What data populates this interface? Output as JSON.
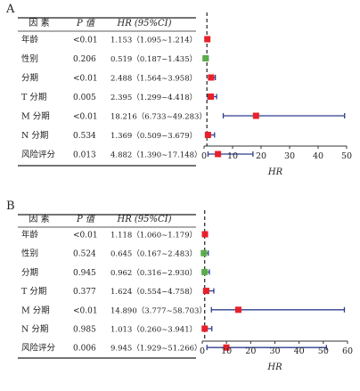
{
  "chart_data": [
    {
      "type": "forest",
      "panel_label": "A",
      "columns": [
        "因 素",
        "P 值",
        "HR (95%CI)"
      ],
      "xlabel": "HR",
      "xlim": [
        0,
        50
      ],
      "xticks": [
        0,
        10,
        20,
        30,
        40,
        50
      ],
      "reference_line": 1,
      "rows": [
        {
          "factor": "年龄",
          "p": "<0.01",
          "hr_text": "1.153（1.095~1.214）",
          "hr": 1.153,
          "lo": 1.095,
          "hi": 1.214,
          "color": "#e8202a"
        },
        {
          "factor": "性别",
          "p": "0.206",
          "hr_text": "0.519（0.187~1.435）",
          "hr": 0.519,
          "lo": 0.187,
          "hi": 1.435,
          "color": "#5aad4a"
        },
        {
          "factor": "分期",
          "p": "<0.01",
          "hr_text": "2.488（1.564~3.958）",
          "hr": 2.488,
          "lo": 1.564,
          "hi": 3.958,
          "color": "#e8202a"
        },
        {
          "factor": "T 分期",
          "p": "0.005",
          "hr_text": "2.395（1.299~4.418）",
          "hr": 2.395,
          "lo": 1.299,
          "hi": 4.418,
          "color": "#e8202a"
        },
        {
          "factor": "M 分期",
          "p": "<0.01",
          "hr_text": "18.216（6.733~49.283）",
          "hr": 18.216,
          "lo": 6.733,
          "hi": 49.283,
          "color": "#e8202a"
        },
        {
          "factor": "N 分期",
          "p": "0.534",
          "hr_text": "1.369（0.509~3.679）",
          "hr": 1.369,
          "lo": 0.509,
          "hi": 3.679,
          "color": "#e8202a"
        },
        {
          "factor": "风险评分",
          "p": "0.013",
          "hr_text": "4.882（1.390~17.148）",
          "hr": 4.882,
          "lo": 1.39,
          "hi": 17.148,
          "color": "#e8202a"
        }
      ]
    },
    {
      "type": "forest",
      "panel_label": "B",
      "columns": [
        "因 素",
        "P 值",
        "HR (95%CI)"
      ],
      "xlabel": "HR",
      "xlim": [
        0,
        60
      ],
      "xticks": [
        0,
        10,
        20,
        30,
        40,
        50,
        60
      ],
      "reference_line": 1,
      "rows": [
        {
          "factor": "年龄",
          "p": "<0.01",
          "hr_text": "1.118（1.060~1.179）",
          "hr": 1.118,
          "lo": 1.06,
          "hi": 1.179,
          "color": "#e8202a"
        },
        {
          "factor": "性别",
          "p": "0.524",
          "hr_text": "0.645（0.167~2.483）",
          "hr": 0.645,
          "lo": 0.167,
          "hi": 2.483,
          "color": "#5aad4a"
        },
        {
          "factor": "分期",
          "p": "0.945",
          "hr_text": "0.962（0.316~2.930）",
          "hr": 0.962,
          "lo": 0.316,
          "hi": 2.93,
          "color": "#5aad4a"
        },
        {
          "factor": "T 分期",
          "p": "0.377",
          "hr_text": "1.624（0.554~4.758）",
          "hr": 1.624,
          "lo": 0.554,
          "hi": 4.758,
          "color": "#e8202a"
        },
        {
          "factor": "M 分期",
          "p": "<0.01",
          "hr_text": "14.890（3.777~58.703）",
          "hr": 14.89,
          "lo": 3.777,
          "hi": 58.703,
          "color": "#e8202a"
        },
        {
          "factor": "N 分期",
          "p": "0.985",
          "hr_text": "1.013（0.260~3.941）",
          "hr": 1.013,
          "lo": 0.26,
          "hi": 3.941,
          "color": "#e8202a"
        },
        {
          "factor": "风险评分",
          "p": "0.006",
          "hr_text": "9.945（1.929~51.266）",
          "hr": 9.945,
          "lo": 1.929,
          "hi": 51.266,
          "color": "#e8202a"
        }
      ]
    }
  ],
  "colors": {
    "ci_line": "#2f3f8f",
    "text": "#222222",
    "axis": "#333333"
  }
}
